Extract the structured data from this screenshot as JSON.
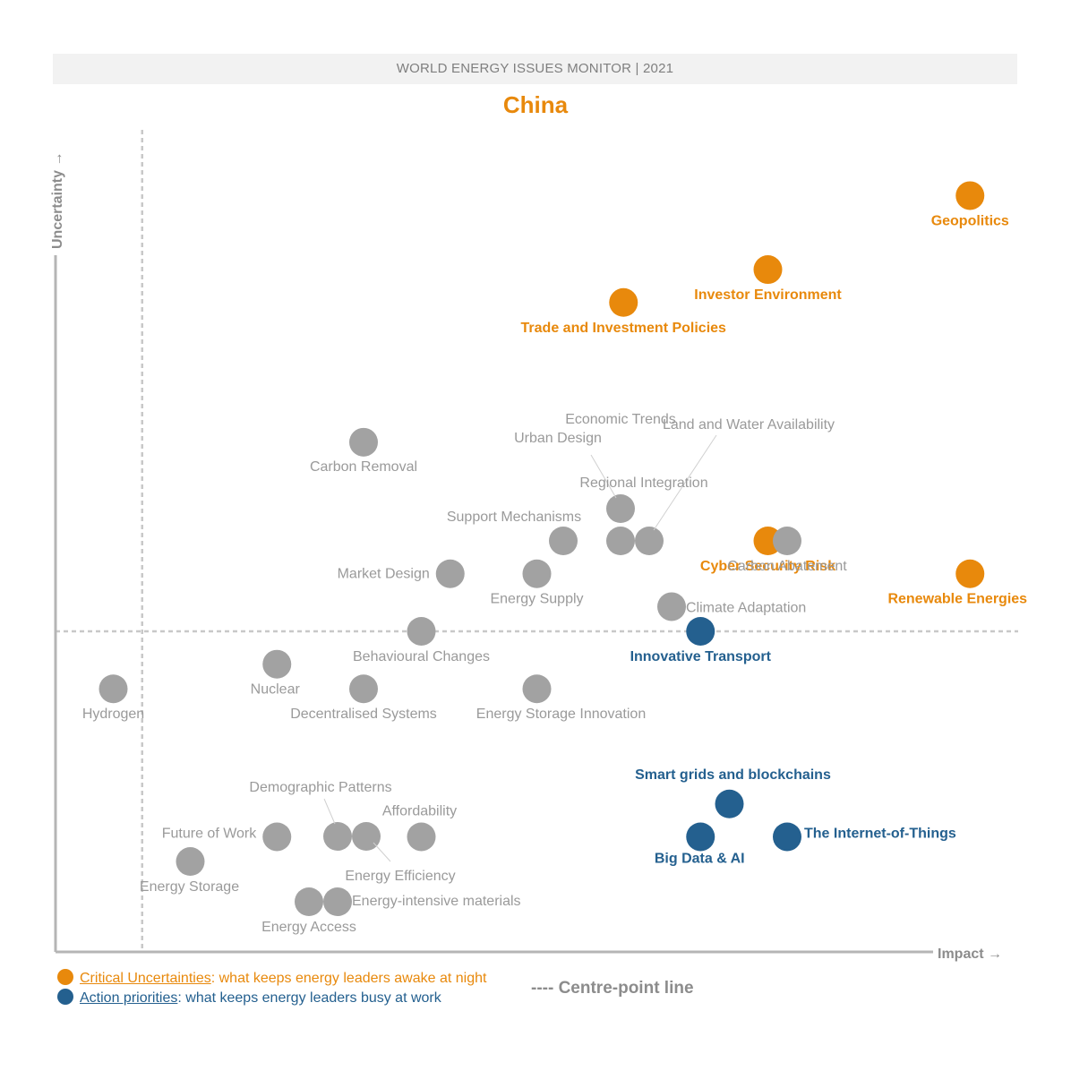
{
  "header": {
    "banner": "WORLD ENERGY ISSUES MONITOR | 2021",
    "country": "China"
  },
  "colors": {
    "critical": "#e8890c",
    "action": "#24608f",
    "neutral": "#a2a2a2",
    "axis": "#b5b5b5"
  },
  "chart_data": {
    "type": "scatter",
    "title": "China",
    "xlabel": "Impact",
    "ylabel": "Uncertainty",
    "xlim": [
      0,
      10
    ],
    "ylim": [
      0,
      10
    ],
    "centre_point": {
      "x": 0.9,
      "y": 3.9
    },
    "points": [
      {
        "name": "Geopolitics",
        "x": 9.5,
        "y": 9.2,
        "category": "critical",
        "label_pos": "below"
      },
      {
        "name": "Investor Environment",
        "x": 7.4,
        "y": 8.3,
        "category": "critical",
        "label_pos": "below"
      },
      {
        "name": "Trade and Investment Policies",
        "x": 5.9,
        "y": 7.9,
        "category": "critical",
        "label_pos": "below"
      },
      {
        "name": "Cyber Security Risk",
        "x": 7.4,
        "y": 5.0,
        "category": "critical",
        "label_pos": "below"
      },
      {
        "name": "Renewable Energies",
        "x": 9.5,
        "y": 4.6,
        "category": "critical",
        "label_pos": "below"
      },
      {
        "name": "Innovative Transport",
        "x": 6.7,
        "y": 3.9,
        "category": "action",
        "label_pos": "below"
      },
      {
        "name": "Smart grids and blockchains",
        "x": 7.0,
        "y": 1.8,
        "category": "action",
        "label_pos": "above"
      },
      {
        "name": "Big Data & AI",
        "x": 6.7,
        "y": 1.4,
        "category": "action",
        "label_pos": "below"
      },
      {
        "name": "The Internet-of-Things",
        "x": 7.6,
        "y": 1.4,
        "category": "action",
        "label_pos": "right"
      },
      {
        "name": "Carbon Removal",
        "x": 3.2,
        "y": 6.2,
        "category": "neutral",
        "label_pos": "below"
      },
      {
        "name": "Urban Design",
        "x": 5.9,
        "y": 5.4,
        "category": "neutral",
        "label_pos": "leader"
      },
      {
        "name": "Land and Water Availability",
        "x": 6.2,
        "y": 5.0,
        "category": "neutral",
        "label_pos": "leader"
      },
      {
        "name": "Regional Integration",
        "x": 5.9,
        "y": 5.0,
        "category": "neutral",
        "label_pos": "above"
      },
      {
        "name": "Support Mechanisms",
        "x": 5.3,
        "y": 5.0,
        "category": "neutral",
        "label_pos": "above-left"
      },
      {
        "name": "Economic Trends",
        "x": 5.9,
        "y": 5.4,
        "category": "neutral",
        "label_pos": "below"
      },
      {
        "name": "Carbon Abatement",
        "x": 7.6,
        "y": 5.0,
        "category": "neutral",
        "label_pos": "below"
      },
      {
        "name": "Market Design",
        "x": 4.1,
        "y": 4.6,
        "category": "neutral",
        "label_pos": "left"
      },
      {
        "name": "Energy Supply",
        "x": 5.0,
        "y": 4.6,
        "category": "neutral",
        "label_pos": "below"
      },
      {
        "name": "Climate Adaptation",
        "x": 6.4,
        "y": 4.2,
        "category": "neutral",
        "label_pos": "right"
      },
      {
        "name": "Behavioural Changes",
        "x": 3.8,
        "y": 3.9,
        "category": "neutral",
        "label_pos": "below"
      },
      {
        "name": "Nuclear",
        "x": 2.3,
        "y": 3.5,
        "category": "neutral",
        "label_pos": "below"
      },
      {
        "name": "Hydrogen",
        "x": 0.6,
        "y": 3.2,
        "category": "neutral",
        "label_pos": "below"
      },
      {
        "name": "Decentralised Systems",
        "x": 3.2,
        "y": 3.2,
        "category": "neutral",
        "label_pos": "below"
      },
      {
        "name": "Energy Storage Innovation",
        "x": 5.0,
        "y": 3.2,
        "category": "neutral",
        "label_pos": "below"
      },
      {
        "name": "Demographic Patterns",
        "x": 2.9,
        "y": 1.4,
        "category": "neutral",
        "label_pos": "leader"
      },
      {
        "name": "Affordability",
        "x": 3.8,
        "y": 1.4,
        "category": "neutral",
        "label_pos": "above"
      },
      {
        "name": "Future of Work",
        "x": 2.3,
        "y": 1.4,
        "category": "neutral",
        "label_pos": "left"
      },
      {
        "name": "Energy Efficiency",
        "x": 3.2,
        "y": 1.4,
        "category": "neutral",
        "label_pos": "leader"
      },
      {
        "name": "Energy Storage",
        "x": 1.4,
        "y": 1.1,
        "category": "neutral",
        "label_pos": "below"
      },
      {
        "name": "Energy Access",
        "x": 2.6,
        "y": 0.7,
        "category": "neutral",
        "label_pos": "below"
      },
      {
        "name": "Energy-intensive materials",
        "x": 2.9,
        "y": 0.7,
        "category": "neutral",
        "label_pos": "right"
      }
    ]
  },
  "legend": {
    "critical_title": "Critical Uncertainties",
    "critical_desc": ": what keeps energy leaders awake at night",
    "action_title": "Action priorities",
    "action_desc": ": what keeps energy leaders busy at work",
    "centre_line": "---- Centre-point line"
  }
}
